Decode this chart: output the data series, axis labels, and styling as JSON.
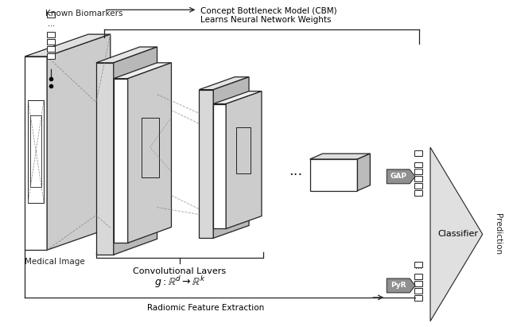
{
  "bg_color": "#ffffff",
  "lc": "#222222",
  "face_white": "#ffffff",
  "face_light": "#e8e8e8",
  "face_mid": "#c8c8c8",
  "face_dark": "#aaaaaa",
  "face_arrow": "#999999",
  "face_tri": "#e0e0e0",
  "labels": {
    "known_biomarkers": "Known Biomarkers",
    "medical_image": "Medical Image",
    "conv_layers": "Convolutional Lavers",
    "conv_formula": "$g : \\mathbb{R}^d \\rightarrow \\mathbb{R}^k$",
    "radiomic": "Radiomic Feature Extraction",
    "cbm_line1": "Concept Bottleneck Model (CBM)",
    "cbm_line2": "Learns Neural Network Weights",
    "gap": "GAP",
    "pyr": "PyR",
    "classifier": "Classifier",
    "prediction": "Prediction"
  }
}
